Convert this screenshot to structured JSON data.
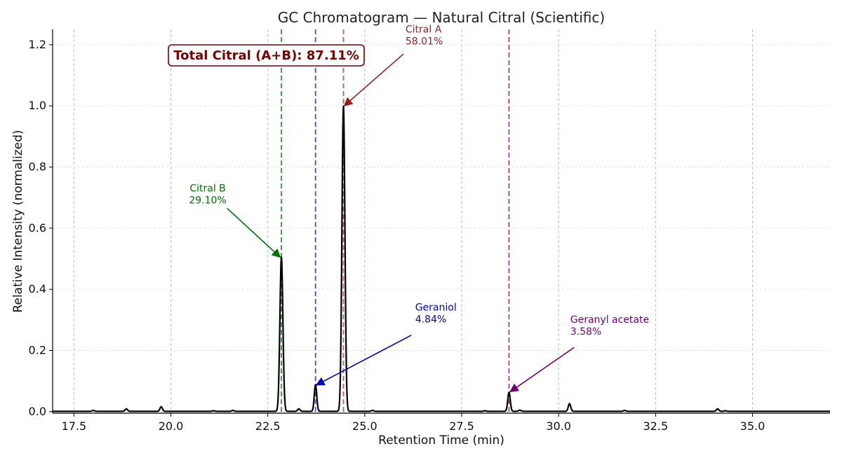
{
  "chart_data": {
    "type": "line",
    "title": "GC Chromatogram — Natural Citral (Scientific)",
    "xlabel": "Retention Time (min)",
    "ylabel": "Relative Intensity (normalized)",
    "xlim": [
      16.95,
      37.0
    ],
    "ylim": [
      -0.005,
      1.25
    ],
    "x_ticks": [
      17.5,
      20.0,
      22.5,
      25.0,
      27.5,
      30.0,
      32.5,
      35.0
    ],
    "x_tick_labels": [
      "17.5",
      "20.0",
      "22.5",
      "25.0",
      "27.5",
      "30.0",
      "32.5",
      "35.0"
    ],
    "y_ticks": [
      0.0,
      0.2,
      0.4,
      0.6,
      0.8,
      1.0,
      1.2
    ],
    "y_tick_labels": [
      "0.0",
      "0.2",
      "0.4",
      "0.6",
      "0.8",
      "1.0",
      "1.2"
    ],
    "grid": true,
    "line_color": "#000000",
    "peaks": [
      {
        "x": 18.0,
        "height": 0.003
      },
      {
        "x": 18.85,
        "height": 0.008
      },
      {
        "x": 19.75,
        "height": 0.015
      },
      {
        "x": 21.1,
        "height": 0.002
      },
      {
        "x": 21.6,
        "height": 0.003
      },
      {
        "x": 22.85,
        "height": 0.505
      },
      {
        "x": 23.3,
        "height": 0.008
      },
      {
        "x": 23.73,
        "height": 0.087
      },
      {
        "x": 24.45,
        "height": 1.0
      },
      {
        "x": 25.2,
        "height": 0.003
      },
      {
        "x": 28.1,
        "height": 0.002
      },
      {
        "x": 28.72,
        "height": 0.062
      },
      {
        "x": 29.0,
        "height": 0.004
      },
      {
        "x": 30.28,
        "height": 0.025
      },
      {
        "x": 31.7,
        "height": 0.003
      },
      {
        "x": 34.1,
        "height": 0.008
      },
      {
        "x": 34.3,
        "height": 0.002
      }
    ],
    "markers": [
      {
        "x": 22.85,
        "color": "#4a9a4a"
      },
      {
        "x": 23.73,
        "color": "#5a5ad8"
      },
      {
        "x": 24.45,
        "color": "#b87070"
      },
      {
        "x": 28.72,
        "color": "#9a5a9a"
      }
    ],
    "annotations": [
      {
        "name": "Citral B",
        "percent": "29.10%",
        "color": "#007000",
        "text_x": 20.95,
        "text_y": 0.72,
        "point_x": 22.82,
        "point_y": 0.505,
        "arrow_from_x": 21.45,
        "arrow_from_y": 0.665
      },
      {
        "name": "Citral A",
        "percent": "58.01%",
        "color": "#9a2020",
        "text_x": 26.05,
        "text_y": 1.24,
        "point_x": 24.47,
        "point_y": 1.0,
        "arrow_from_x": 26.0,
        "arrow_from_y": 1.17
      },
      {
        "name": "Geraniol",
        "percent": "4.84%",
        "color": "#0000c0",
        "text_x": 26.3,
        "text_y": 0.33,
        "point_x": 23.75,
        "point_y": 0.087,
        "arrow_from_x": 26.2,
        "arrow_from_y": 0.25
      },
      {
        "name": "Geranyl acetate",
        "percent": "3.58%",
        "color": "#700070",
        "text_x": 30.3,
        "text_y": 0.29,
        "point_x": 28.75,
        "point_y": 0.065,
        "arrow_from_x": 30.4,
        "arrow_from_y": 0.21
      }
    ],
    "total_label": "Total Citral (A+B): 87.11%",
    "total_label_color": "#7a0000"
  }
}
